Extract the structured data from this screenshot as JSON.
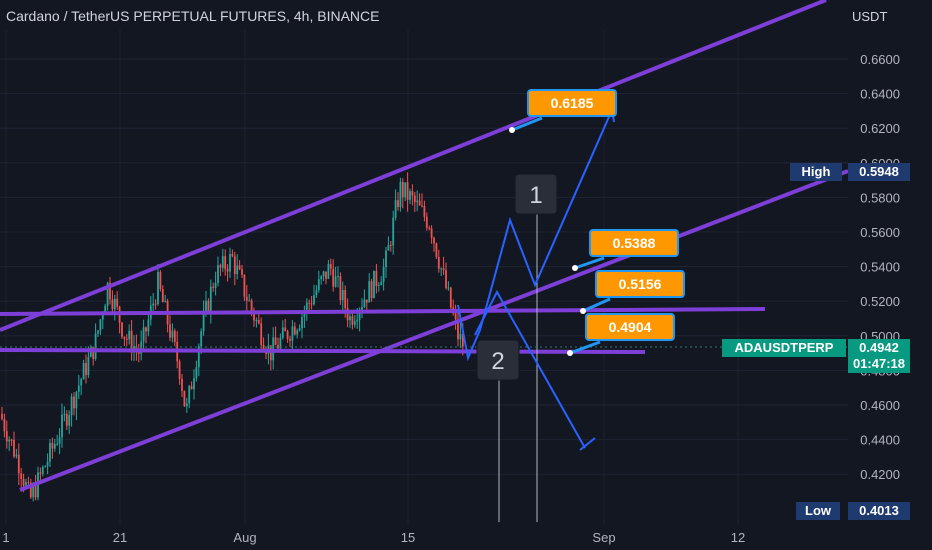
{
  "header": {
    "title": "Cardano / TetherUS PERPETUAL FUTURES, 4h, BINANCE"
  },
  "colors": {
    "background": "#131722",
    "up": "#26a69a",
    "down": "#ef5350",
    "channel": "#7e3fd8",
    "arrow": "#2962ff",
    "callout_fill": "#ff9800",
    "callout_border": "#2196f3",
    "price_tag": "#089981",
    "level_tag": "#1e3a6e"
  },
  "chart_data": {
    "type": "candlestick",
    "title": "Cardano / TetherUS PERPETUAL FUTURES, 4h, BINANCE",
    "y_unit": "USDT",
    "ylim": [
      0.4,
      0.67
    ],
    "y_ticks": [
      "0.6600",
      "0.6400",
      "0.6200",
      "0.6000",
      "0.5800",
      "0.5600",
      "0.5400",
      "0.5200",
      "0.5000",
      "0.4800",
      "0.4600",
      "0.4400",
      "0.4200"
    ],
    "x_ticks": [
      "1",
      "21",
      "Aug",
      "15",
      "Sep",
      "12"
    ],
    "price_tags": [
      {
        "label": "High",
        "value": "0.5948"
      },
      {
        "label": "ADAUSDTPERP",
        "value": "0.4942",
        "countdown": "01:47:18"
      },
      {
        "label": "Low",
        "value": "0.4013"
      }
    ],
    "callouts": [
      "0.6185",
      "0.5388",
      "0.5156",
      "0.4904"
    ],
    "scenario_labels": [
      "1",
      "2"
    ],
    "series_summary": {
      "start": 0.465,
      "low": 0.4013,
      "high": 0.5948,
      "last": 0.4942
    }
  }
}
